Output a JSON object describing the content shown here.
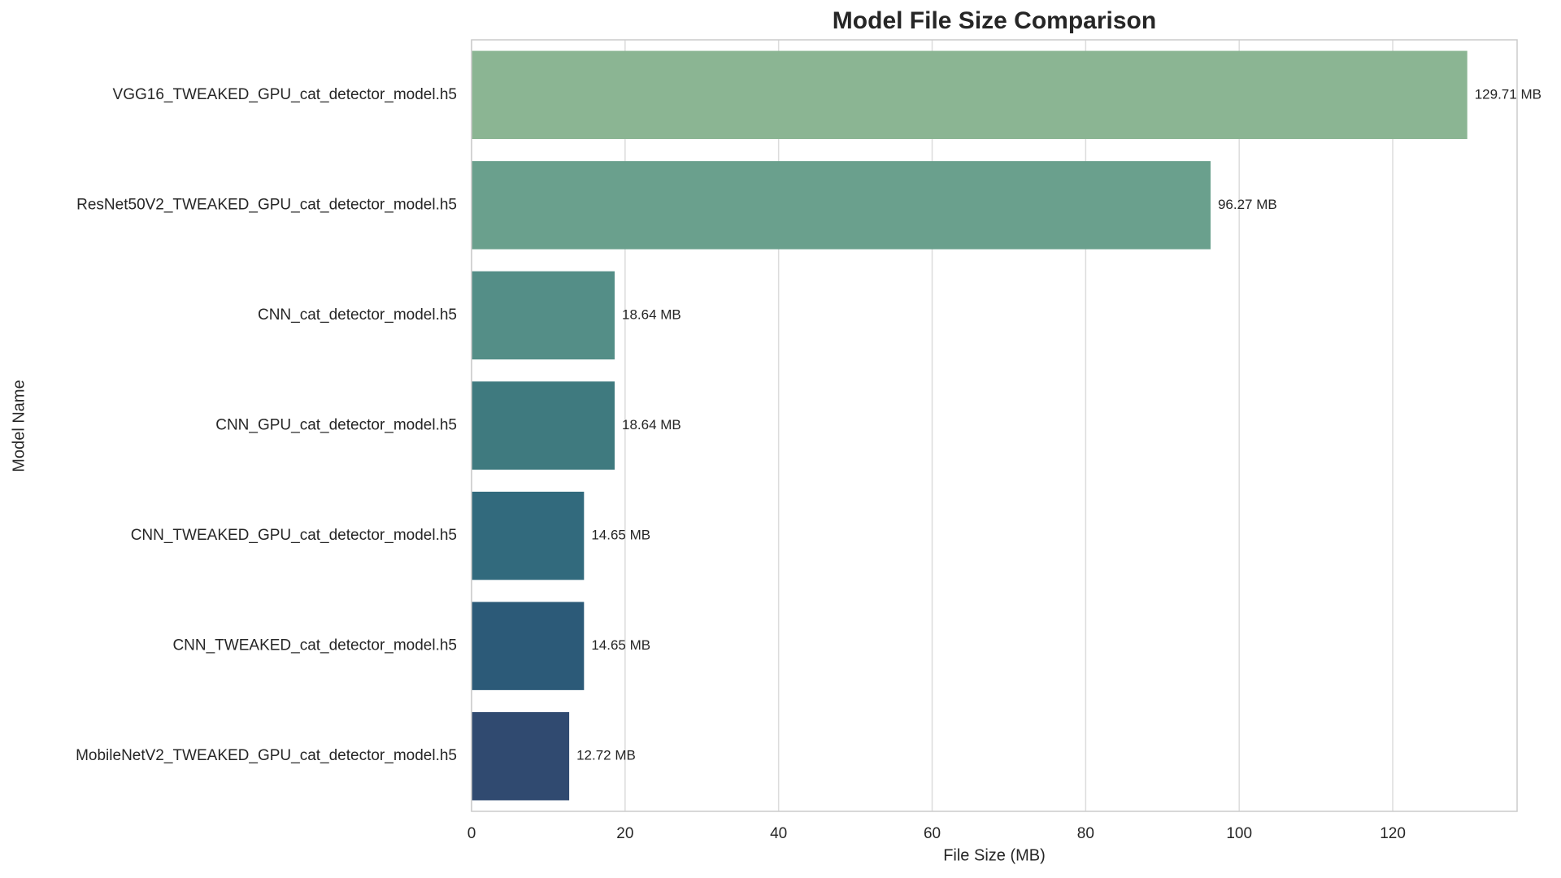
{
  "chart_data": {
    "type": "barh",
    "title": "Model File Size Comparison",
    "x_label": "File Size (MB)",
    "y_label": "Model Name",
    "categories": [
      "VGG16_TWEAKED_GPU_cat_detector_model.h5",
      "ResNet50V2_TWEAKED_GPU_cat_detector_model.h5",
      "CNN_cat_detector_model.h5",
      "CNN_GPU_cat_detector_model.h5",
      "CNN_TWEAKED_GPU_cat_detector_model.h5",
      "CNN_TWEAKED_cat_detector_model.h5",
      "MobileNetV2_TWEAKED_GPU_cat_detector_model.h5"
    ],
    "values": [
      129.71,
      96.27,
      18.64,
      18.64,
      14.65,
      14.65,
      12.72
    ],
    "value_labels": [
      "129.71 MB",
      "96.27 MB",
      "18.64 MB",
      "18.64 MB",
      "14.65 MB",
      "14.65 MB",
      "12.72 MB"
    ],
    "colors": [
      "#8bb593",
      "#6aa08d",
      "#548e87",
      "#3f7a7f",
      "#326a7d",
      "#2c5a78",
      "#304a70"
    ],
    "xlim": [
      0,
      136.2
    ],
    "xticks": [
      0,
      20,
      40,
      60,
      80,
      100,
      120
    ],
    "grid": true
  }
}
